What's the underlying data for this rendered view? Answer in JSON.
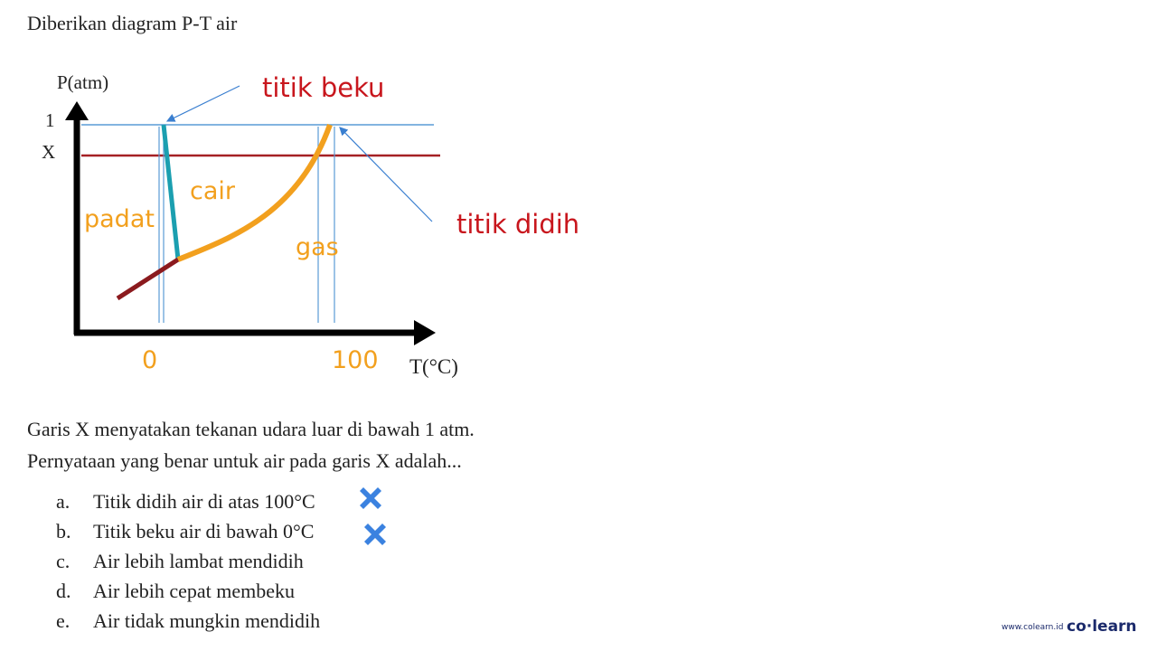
{
  "title": "Diberikan diagram P-T air",
  "diagram": {
    "y_axis_label": "P(atm)",
    "y_label_1": "1",
    "y_label_x": "X",
    "x_axis_label": "T(°C)",
    "x_label_0": "0",
    "x_label_100": "100",
    "freezing_point": "titik beku",
    "boiling_point": "titik didih",
    "regions": {
      "liquid": "cair",
      "solid": "padat",
      "gas": "gas"
    }
  },
  "question": {
    "lines": [
      "Garis X menyatakan tekanan udara luar di bawah 1 atm.",
      "Pernyataan yang benar untuk air pada garis X adalah..."
    ]
  },
  "options": [
    {
      "letter": "a.",
      "text": "Titik didih air di atas 100°C"
    },
    {
      "letter": "b.",
      "text": "Titik beku air di bawah 0°C"
    },
    {
      "letter": "c.",
      "text": "Air lebih lambat mendidih"
    },
    {
      "letter": "d.",
      "text": "Air lebih cepat membeku"
    },
    {
      "letter": "e.",
      "text": "Air tidak mungkin mendidih"
    }
  ],
  "footer": {
    "url": "www.colearn.id",
    "brand": "co·learn"
  }
}
